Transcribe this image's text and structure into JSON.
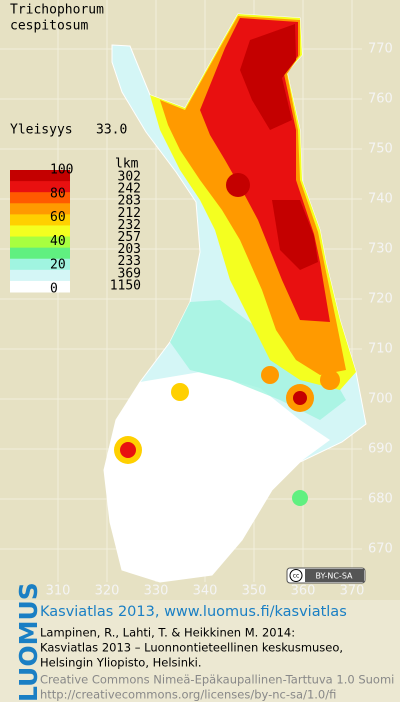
{
  "header": {
    "title_lines": [
      "Trichophorum",
      "cespitosum"
    ],
    "frequency_label": "Yleisyys",
    "frequency_value": "33.0"
  },
  "legend": {
    "levels": [
      "100",
      "80",
      "60",
      "40",
      "20",
      "0"
    ],
    "count_header": "lkm",
    "counts": [
      "302",
      "242",
      "283",
      "212",
      "232",
      "257",
      "203",
      "233",
      "369",
      "1150"
    ],
    "colors": [
      "#c40000",
      "#e81010",
      "#ff5a00",
      "#ff9a00",
      "#ffd000",
      "#f4ff20",
      "#a8ff40",
      "#60f080",
      "#a0f4e0",
      "#d4f6f6",
      "#ffffff"
    ]
  },
  "grid": {
    "y_ticks": [
      770,
      760,
      750,
      740,
      730,
      720,
      710,
      700,
      690,
      680,
      670
    ],
    "x_ticks": [
      310,
      320,
      330,
      340,
      350,
      360,
      370
    ]
  },
  "badge": "BY-NC-SA",
  "footer": {
    "logo": "LUOMUS",
    "headline": "Kasviatlas 2013, www.luomus.fi/kasviatlas",
    "citation": [
      "Lampinen, R., Lahti, T. & Heikkinen M. 2014:",
      "Kasviatlas 2013 – Luonnontieteellinen keskusmuseo,",
      "Helsingin Yliopisto, Helsinki."
    ],
    "license": [
      "Creative Commons Nimeä-Epäkaupallinen-Tarttuva 1.0 Suomi",
      "http://creativecommons.org/licenses/by-nc-sa/1.0/fi"
    ]
  }
}
